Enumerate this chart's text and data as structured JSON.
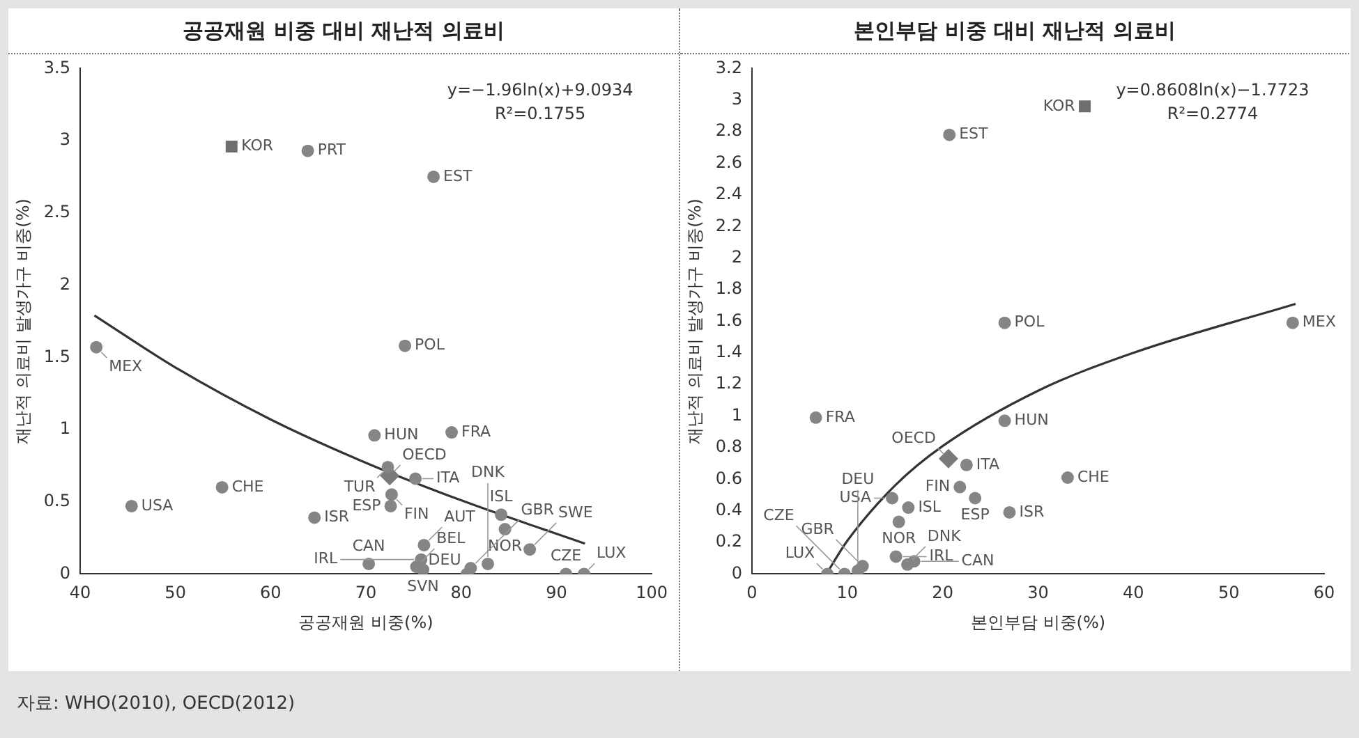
{
  "chart_data": [
    {
      "type": "scatter",
      "title": "공공재원 비중 대비 재난적 의료비",
      "xlabel": "공공재원 비중(%)",
      "ylabel": "재난적 의료비 발생가구 비중(%)",
      "xlim": [
        40,
        100
      ],
      "xticks": [
        40,
        50,
        60,
        70,
        80,
        90,
        100
      ],
      "ylim": [
        0,
        3.5
      ],
      "yticks": [
        0,
        0.5,
        1,
        1.5,
        2,
        2.5,
        3,
        3.5
      ],
      "grid": false,
      "legend": false,
      "series": [
        {
          "type": "scatter",
          "marker": "circle",
          "color": "#858585",
          "x": [
            63.9,
            77.1,
            74.1,
            41.7,
            70.9,
            79.0,
            72.3,
            75.2,
            72.7,
            72.6,
            54.9,
            45.4,
            64.6,
            84.2,
            84.6,
            70.3,
            75.3,
            75.8,
            76.0,
            76.1,
            81.0,
            80.6,
            82.8,
            87.2,
            91.0,
            92.9
          ],
          "values": [
            2.93,
            2.75,
            1.58,
            1.57,
            0.96,
            0.98,
            0.74,
            0.66,
            0.55,
            0.47,
            0.6,
            0.47,
            0.39,
            0.41,
            0.31,
            0.07,
            0.05,
            0.1,
            0.03,
            0.2,
            0.04,
            0.0,
            0.07,
            0.17,
            0.0,
            0.0
          ]
        },
        {
          "type": "scatter",
          "marker": "square",
          "color": "#6e6e6e",
          "x": [
            55.9
          ],
          "values": [
            2.96
          ]
        },
        {
          "type": "scatter",
          "marker": "diamond",
          "color": "#7a7a7a",
          "x": [
            72.5
          ],
          "values": [
            0.68
          ]
        },
        {
          "type": "line",
          "marker": "none",
          "color": "#333333",
          "x": [
            41.5,
            50,
            60,
            70,
            80,
            93
          ],
          "values": [
            1.79,
            1.43,
            1.07,
            0.77,
            0.51,
            0.21
          ]
        }
      ],
      "annotations": [
        "y=−1.96ln(x)+9.0934",
        "R²=0.1755",
        "자료: WHO(2010), OECD(2012)",
        {
          "text": "KOR",
          "x": 55.9,
          "y": 2.96
        },
        {
          "text": "PRT",
          "x": 63.9,
          "y": 2.93
        },
        {
          "text": "EST",
          "x": 77.1,
          "y": 2.75
        },
        {
          "text": "POL",
          "x": 74.1,
          "y": 1.58
        },
        {
          "text": "MEX",
          "x": 41.7,
          "y": 1.57
        },
        {
          "text": "HUN",
          "x": 70.9,
          "y": 0.96
        },
        {
          "text": "FRA",
          "x": 79.0,
          "y": 0.98
        },
        {
          "text": "TUR",
          "x": 72.3,
          "y": 0.74
        },
        {
          "text": "OECD",
          "x": 72.5,
          "y": 0.68
        },
        {
          "text": "ITA",
          "x": 75.2,
          "y": 0.66
        },
        {
          "text": "FIN",
          "x": 72.7,
          "y": 0.55
        },
        {
          "text": "ESP",
          "x": 72.6,
          "y": 0.47
        },
        {
          "text": "CHE",
          "x": 54.9,
          "y": 0.6
        },
        {
          "text": "USA",
          "x": 45.4,
          "y": 0.47
        },
        {
          "text": "ISR",
          "x": 64.6,
          "y": 0.39
        },
        {
          "text": "ISL",
          "x": 84.2,
          "y": 0.41
        },
        {
          "text": "NOR",
          "x": 84.6,
          "y": 0.31
        },
        {
          "text": "CAN",
          "x": 70.3,
          "y": 0.07
        },
        {
          "text": "BEL",
          "x": 75.3,
          "y": 0.05
        },
        {
          "text": "IRL",
          "x": 75.8,
          "y": 0.1
        },
        {
          "text": "SVN",
          "x": 76.0,
          "y": 0.03
        },
        {
          "text": "AUT",
          "x": 76.1,
          "y": 0.2
        },
        {
          "text": "GBR",
          "x": 81.0,
          "y": 0.04
        },
        {
          "text": "DEU",
          "x": 80.6,
          "y": 0.0
        },
        {
          "text": "DNK",
          "x": 82.8,
          "y": 0.07
        },
        {
          "text": "SWE",
          "x": 87.2,
          "y": 0.17
        },
        {
          "text": "CZE",
          "x": 91.0,
          "y": 0.0
        },
        {
          "text": "LUX",
          "x": 92.9,
          "y": 0.0
        }
      ]
    },
    {
      "type": "scatter",
      "title": "본인부담 비중 대비 재난적 의료비",
      "xlabel": "본인부담 비중(%)",
      "ylabel": "재난적 의료비 발생가구 비중(%)",
      "xlim": [
        0,
        60
      ],
      "xticks": [
        0,
        10,
        20,
        30,
        40,
        50,
        60
      ],
      "ylim": [
        0,
        3.2
      ],
      "yticks": [
        0,
        0.2,
        0.4,
        0.6,
        0.8,
        1,
        1.2,
        1.4,
        1.6,
        1.8,
        2,
        2.2,
        2.4,
        2.6,
        2.8,
        3,
        3.2
      ],
      "grid": false,
      "legend": false,
      "series": [
        {
          "type": "scatter",
          "marker": "circle",
          "color": "#858585",
          "x": [
            20.7,
            26.5,
            56.7,
            6.7,
            26.5,
            22.5,
            33.1,
            14.7,
            21.8,
            23.4,
            27.0,
            16.4,
            15.4,
            15.1,
            17.0,
            16.3,
            11.6,
            11.1,
            9.7,
            7.9
          ],
          "values": [
            2.78,
            1.59,
            1.59,
            0.99,
            0.97,
            0.69,
            0.61,
            0.48,
            0.55,
            0.48,
            0.39,
            0.42,
            0.33,
            0.11,
            0.08,
            0.06,
            0.05,
            0.02,
            0.0,
            0.0
          ]
        },
        {
          "type": "scatter",
          "marker": "square",
          "color": "#6e6e6e",
          "x": [
            34.9
          ],
          "values": [
            2.96
          ]
        },
        {
          "type": "scatter",
          "marker": "diamond",
          "color": "#7a7a7a",
          "x": [
            20.6
          ],
          "values": [
            0.73
          ]
        },
        {
          "type": "line",
          "marker": "none",
          "color": "#333333",
          "x": [
            7.8,
            10,
            15,
            20,
            30,
            40,
            57
          ],
          "values": [
            0.0,
            0.21,
            0.56,
            0.81,
            1.16,
            1.4,
            1.71
          ]
        }
      ],
      "annotations": [
        "y=0.8608ln(x)−1.7723",
        "R²=0.2774",
        {
          "text": "KOR",
          "x": 34.9,
          "y": 2.96
        },
        {
          "text": "EST",
          "x": 20.7,
          "y": 2.78
        },
        {
          "text": "POL",
          "x": 26.5,
          "y": 1.59
        },
        {
          "text": "MEX",
          "x": 56.7,
          "y": 1.59
        },
        {
          "text": "FRA",
          "x": 6.7,
          "y": 0.99
        },
        {
          "text": "HUN",
          "x": 26.5,
          "y": 0.97
        },
        {
          "text": "OECD",
          "x": 20.6,
          "y": 0.73
        },
        {
          "text": "ITA",
          "x": 22.5,
          "y": 0.69
        },
        {
          "text": "CHE",
          "x": 33.1,
          "y": 0.61
        },
        {
          "text": "USA",
          "x": 14.7,
          "y": 0.48
        },
        {
          "text": "FIN",
          "x": 21.8,
          "y": 0.55
        },
        {
          "text": "ESP",
          "x": 23.4,
          "y": 0.48
        },
        {
          "text": "ISR",
          "x": 27.0,
          "y": 0.39
        },
        {
          "text": "ISL",
          "x": 16.4,
          "y": 0.42
        },
        {
          "text": "NOR",
          "x": 15.4,
          "y": 0.33
        },
        {
          "text": "IRL",
          "x": 15.1,
          "y": 0.11
        },
        {
          "text": "CAN",
          "x": 17.0,
          "y": 0.08
        },
        {
          "text": "DNK",
          "x": 16.3,
          "y": 0.06
        },
        {
          "text": "GBR",
          "x": 11.6,
          "y": 0.05
        },
        {
          "text": "DEU",
          "x": 11.1,
          "y": 0.02
        },
        {
          "text": "CZE",
          "x": 9.7,
          "y": 0.0
        },
        {
          "text": "LUX",
          "x": 7.9,
          "y": 0.0
        }
      ]
    }
  ]
}
